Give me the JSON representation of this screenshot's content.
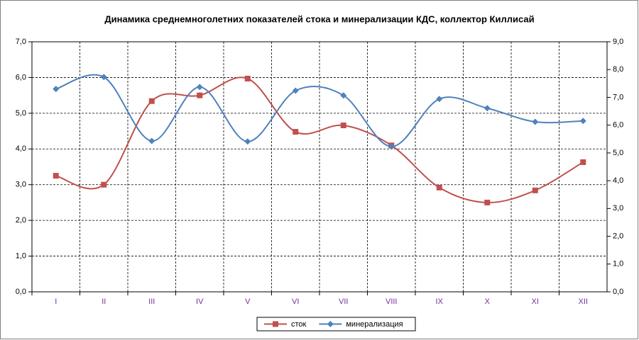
{
  "chart_data": {
    "type": "line",
    "title": "Динамика среднемноголетних показателей стока и минерализации КДС, коллектор Киллисай",
    "categories": [
      "I",
      "II",
      "III",
      "IV",
      "V",
      "VI",
      "VII",
      "VIII",
      "IX",
      "X",
      "XI",
      "XII"
    ],
    "series": [
      {
        "name": "сток",
        "color": "#c0504d",
        "marker": "square",
        "values": [
          3.25,
          3.0,
          5.34,
          5.5,
          5.97,
          4.48,
          4.66,
          4.1,
          2.92,
          2.5,
          2.84,
          3.63
        ]
      },
      {
        "name": "минерализация",
        "color": "#4f81bd",
        "marker": "diamond",
        "axis": "y2",
        "values": [
          7.3,
          7.73,
          5.43,
          7.37,
          5.41,
          7.24,
          7.07,
          5.23,
          6.94,
          6.61,
          6.12,
          6.15
        ]
      }
    ],
    "ylim": [
      0,
      7
    ],
    "yticks": [
      {
        "value": 0,
        "label": "0,0"
      },
      {
        "value": 1,
        "label": "1,0"
      },
      {
        "value": 2,
        "label": "2,0"
      },
      {
        "value": 3,
        "label": "3,0"
      },
      {
        "value": 4,
        "label": "4,0"
      },
      {
        "value": 5,
        "label": "5,0"
      },
      {
        "value": 6,
        "label": "6,0"
      },
      {
        "value": 7,
        "label": "7,0"
      }
    ],
    "y2lim": [
      0,
      9
    ],
    "y2ticks": [
      {
        "value": 0,
        "label": "0,0"
      },
      {
        "value": 1,
        "label": "1,0"
      },
      {
        "value": 2,
        "label": "2,0"
      },
      {
        "value": 3,
        "label": "3,0"
      },
      {
        "value": 4,
        "label": "4,0"
      },
      {
        "value": 5,
        "label": "5,0"
      },
      {
        "value": 6,
        "label": "6,0"
      },
      {
        "value": 7,
        "label": "7,0"
      },
      {
        "value": 8,
        "label": "8,0"
      },
      {
        "value": 9,
        "label": "9,0"
      }
    ],
    "grid": true,
    "smooth": true,
    "legend": "bottom"
  }
}
